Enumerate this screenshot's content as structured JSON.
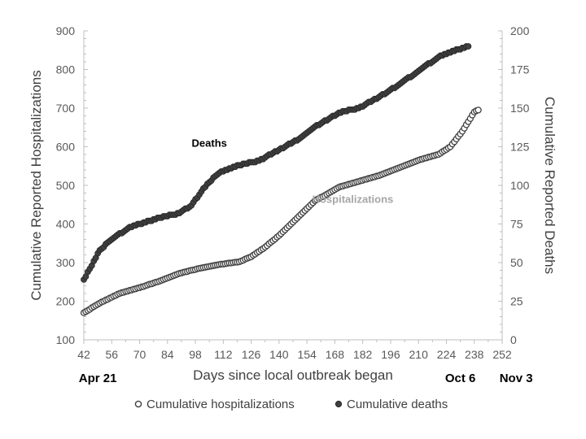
{
  "chart_data": {
    "type": "scatter",
    "title": "",
    "xlabel": "Days since local outbreak began",
    "ylabel_left": "Cumulative Reported Hospitalizations",
    "ylabel_right": "Cumulative Reported Deaths",
    "xlim": [
      42,
      252
    ],
    "ylim_left": [
      100,
      900
    ],
    "ylim_right": [
      0,
      200
    ],
    "x_ticks": [
      "42",
      "56",
      "70",
      "84",
      "98",
      "112",
      "126",
      "140",
      "154",
      "168",
      "182",
      "196",
      "210",
      "224",
      "238",
      "252"
    ],
    "y_left_ticks": [
      "100",
      "200",
      "300",
      "400",
      "500",
      "600",
      "700",
      "800",
      "900"
    ],
    "y_right_ticks": [
      "0",
      "25",
      "50",
      "75",
      "100",
      "125",
      "150",
      "175",
      "200"
    ],
    "grid": false,
    "legend_position": "bottom",
    "date_labels": [
      {
        "x": 49,
        "text": "Apr 21"
      },
      {
        "x": 231,
        "text": "Oct 6"
      },
      {
        "x": 259,
        "text": "Nov 3"
      }
    ],
    "annotations": [
      {
        "text": "Deaths",
        "x": 105,
        "y_left": 600,
        "color": "#000000"
      },
      {
        "text": "Hospitalizations",
        "x": 177,
        "y_left": 455,
        "color": "#a6a6a6"
      }
    ],
    "series": [
      {
        "name": "Cumulative hospitalizations",
        "axis": "left",
        "marker_style": "open",
        "color": "#404040",
        "x_range": [
          42,
          240
        ],
        "anchors": [
          [
            42,
            170
          ],
          [
            50,
            195
          ],
          [
            60,
            220
          ],
          [
            70,
            235
          ],
          [
            80,
            252
          ],
          [
            90,
            272
          ],
          [
            100,
            285
          ],
          [
            110,
            295
          ],
          [
            120,
            302
          ],
          [
            126,
            315
          ],
          [
            133,
            340
          ],
          [
            140,
            370
          ],
          [
            147,
            405
          ],
          [
            154,
            440
          ],
          [
            158,
            460
          ],
          [
            165,
            480
          ],
          [
            170,
            495
          ],
          [
            180,
            510
          ],
          [
            190,
            525
          ],
          [
            200,
            545
          ],
          [
            210,
            565
          ],
          [
            220,
            580
          ],
          [
            226,
            600
          ],
          [
            232,
            640
          ],
          [
            238,
            690
          ],
          [
            240,
            695
          ]
        ]
      },
      {
        "name": "Cumulative deaths",
        "axis": "right",
        "marker_style": "filled",
        "color": "#404040",
        "x_range": [
          42,
          235
        ],
        "anchors": [
          [
            42,
            39
          ],
          [
            46,
            48
          ],
          [
            50,
            58
          ],
          [
            56,
            65
          ],
          [
            64,
            72
          ],
          [
            70,
            75
          ],
          [
            80,
            79
          ],
          [
            90,
            82
          ],
          [
            96,
            87
          ],
          [
            100,
            94
          ],
          [
            104,
            101
          ],
          [
            110,
            108
          ],
          [
            120,
            113
          ],
          [
            130,
            116
          ],
          [
            140,
            123
          ],
          [
            150,
            130
          ],
          [
            158,
            138
          ],
          [
            165,
            143
          ],
          [
            170,
            147
          ],
          [
            180,
            150
          ],
          [
            190,
            157
          ],
          [
            200,
            165
          ],
          [
            210,
            174
          ],
          [
            220,
            183
          ],
          [
            230,
            188
          ],
          [
            235,
            190
          ]
        ]
      }
    ]
  }
}
